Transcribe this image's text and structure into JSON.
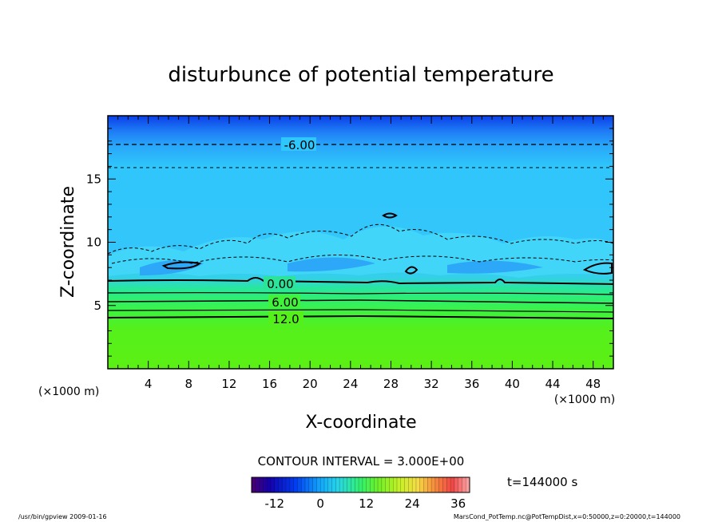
{
  "chart_data": {
    "type": "heatmap",
    "title": "disturbunce of potential temperature",
    "xlabel": "X-coordinate",
    "ylabel": "Z-coordinate",
    "x_unit": "(×1000 m)",
    "x_unit_right": "(×1000 m)",
    "xlim": [
      0,
      50
    ],
    "ylim": [
      0,
      20
    ],
    "x_ticks": [
      "4",
      "8",
      "12",
      "16",
      "20",
      "24",
      "28",
      "32",
      "36",
      "40",
      "44",
      "48"
    ],
    "y_ticks": [
      "5",
      "10",
      "15"
    ],
    "contour_labels": [
      "-6.00",
      "0.00",
      "6.00",
      "12.0"
    ],
    "contour_interval_text": "CONTOUR INTERVAL = 3.000E+00",
    "time_text": "t=144000 s",
    "colorbar": {
      "range": [
        -18,
        39
      ],
      "ticks": [
        "-12",
        "0",
        "12",
        "24",
        "36"
      ]
    }
  },
  "footer": {
    "left": "/usr/bin/gpview   2009-01-16",
    "right": "MarsCond_PotTemp.nc@PotTempDist,x=0:50000,z=0:20000,t=144000"
  }
}
